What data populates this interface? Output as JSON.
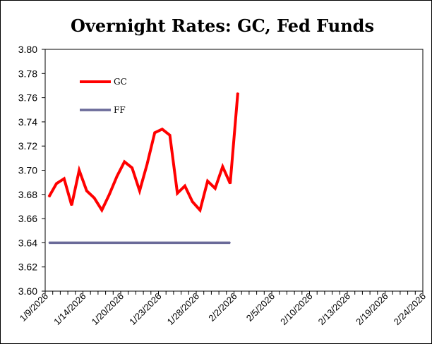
{
  "chart_data": {
    "type": "line",
    "title": "Overnight Rates: GC, Fed Funds",
    "xlabel": "",
    "ylabel": "",
    "ylim": [
      3.6,
      3.8
    ],
    "y_ticks": [
      "3.60",
      "3.62",
      "3.64",
      "3.66",
      "3.68",
      "3.70",
      "3.72",
      "3.74",
      "3.76",
      "3.78",
      "3.80"
    ],
    "x_ticks": [
      "1/9/2026",
      "1/14/2026",
      "1/20/2026",
      "1/23/2026",
      "1/28/2026",
      "2/2/2026",
      "2/5/2026",
      "2/10/2026",
      "2/13/2026",
      "2/19/2026",
      "2/24/2026"
    ],
    "grid": false,
    "legend_position": "top-left",
    "series": [
      {
        "name": "GC",
        "color": "#ff0000",
        "values": [
          3.678,
          3.689,
          3.693,
          3.671,
          3.7,
          3.683,
          3.677,
          3.667,
          3.68,
          3.695,
          3.707,
          3.702,
          3.683,
          3.705,
          3.731,
          3.734,
          3.729,
          3.681,
          3.687,
          3.674,
          3.667,
          3.691,
          3.685,
          3.703,
          3.689,
          3.764
        ]
      },
      {
        "name": "FF",
        "color": "#6a6a99",
        "values": [
          3.64,
          3.64,
          3.64,
          3.64,
          3.64,
          3.64,
          3.64,
          3.64,
          3.64,
          3.64,
          3.64,
          3.64,
          3.64,
          3.64,
          3.64,
          3.64,
          3.64,
          3.64,
          3.64,
          3.64,
          3.64,
          3.64,
          3.64,
          3.64,
          3.64
        ]
      }
    ]
  }
}
